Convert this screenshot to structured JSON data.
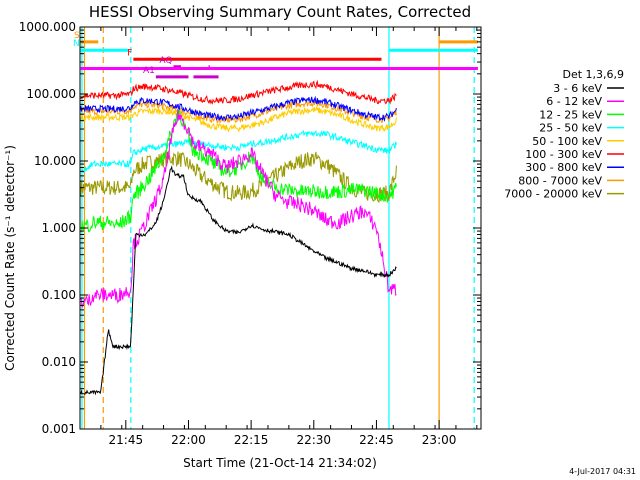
{
  "chart_data": {
    "type": "line",
    "title": "HESSI Observing Summary Count Rates, Corrected",
    "xlabel": "Start Time (21-Oct-14 21:34:02)",
    "ylabel": "Corrected Count Rate (s⁻¹ detector⁻¹)",
    "ylog": true,
    "ylim": [
      0.001,
      1000
    ],
    "xlim": [
      21.5672,
      23.1672
    ],
    "y_tick_labels": [
      "1000.000",
      "100.000",
      "10.000",
      "1.000",
      "0.100",
      "0.010",
      "0.001"
    ],
    "y_tick_values": [
      1000,
      100,
      10,
      1,
      0.1,
      0.01,
      0.001
    ],
    "x_tick_labels": [
      "21:45",
      "22:00",
      "22:15",
      "22:30",
      "22:45",
      "23:00"
    ],
    "x_tick_values": [
      21.75,
      22.0,
      22.25,
      22.5,
      22.75,
      23.0
    ],
    "legend_title": "Det 1,3,6,9",
    "legend_placement": "right",
    "series": [
      {
        "name": "3 - 6 keV",
        "color": "#000000",
        "x": [
          21.57,
          21.65,
          21.68,
          21.7,
          21.72,
          21.77,
          21.77,
          21.79,
          21.83,
          21.87,
          21.9,
          21.93,
          21.95,
          21.98,
          22.0,
          22.05,
          22.1,
          22.15,
          22.2,
          22.25,
          22.3,
          22.4,
          22.45,
          22.5,
          22.55,
          22.6,
          22.65,
          22.7,
          22.75,
          22.8,
          22.83
        ],
        "y": [
          0.0035,
          0.0035,
          0.03,
          0.017,
          0.017,
          0.017,
          0.02,
          0.8,
          0.8,
          1.2,
          2.5,
          8,
          6,
          6,
          3,
          2.5,
          1.3,
          0.9,
          0.85,
          1.1,
          0.95,
          0.8,
          0.6,
          0.45,
          0.35,
          0.3,
          0.25,
          0.23,
          0.2,
          0.2,
          0.25
        ]
      },
      {
        "name": "6 - 12 keV",
        "color": "#ff00ff",
        "x": [
          21.57,
          21.6,
          21.62,
          21.68,
          21.72,
          21.77,
          21.78,
          21.8,
          21.85,
          21.9,
          21.93,
          21.96,
          22.0,
          22.02,
          22.05,
          22.1,
          22.15,
          22.2,
          22.25,
          22.3,
          22.35,
          22.4,
          22.45,
          22.5,
          22.55,
          22.6,
          22.65,
          22.7,
          22.75,
          22.8,
          22.83
        ],
        "y": [
          0.08,
          0.08,
          0.1,
          0.1,
          0.1,
          0.12,
          0.6,
          0.7,
          1.8,
          5,
          20,
          50,
          30,
          18,
          16,
          12,
          8,
          10,
          13,
          6,
          3,
          2.4,
          2.2,
          1.8,
          1.3,
          1.2,
          1.5,
          1.8,
          1.0,
          0.12,
          0.12
        ]
      },
      {
        "name": "12 - 25 keV",
        "color": "#00ff00",
        "x": [
          21.57,
          21.6,
          21.62,
          21.68,
          21.72,
          21.77,
          21.78,
          21.8,
          21.85,
          21.9,
          21.93,
          21.96,
          22.0,
          22.02,
          22.05,
          22.1,
          22.15,
          22.2,
          22.25,
          22.3,
          22.35,
          22.4,
          22.45,
          22.5,
          22.55,
          22.6,
          22.65,
          22.7,
          22.75,
          22.8,
          22.83
        ],
        "y": [
          1.1,
          1.1,
          1.2,
          1.2,
          1.1,
          1.5,
          3,
          3.5,
          6,
          12,
          25,
          60,
          22,
          14,
          13,
          9,
          7,
          8,
          12,
          5,
          4,
          3.7,
          3.5,
          3.5,
          3.5,
          3.5,
          3.7,
          3.7,
          3.3,
          3.0,
          4.0
        ]
      },
      {
        "name": "25 - 50 keV",
        "color": "#00ffff",
        "x": [
          21.57,
          21.62,
          21.68,
          21.72,
          21.77,
          21.78,
          21.82,
          21.87,
          21.92,
          21.96,
          22.0,
          22.05,
          22.1,
          22.15,
          22.2,
          22.25,
          22.3,
          22.35,
          22.4,
          22.45,
          22.5,
          22.55,
          22.6,
          22.65,
          22.7,
          22.75,
          22.8,
          22.83
        ],
        "y": [
          7,
          9,
          9,
          9,
          9,
          13,
          15,
          16,
          17,
          18,
          19,
          18,
          17,
          16,
          16,
          18,
          19,
          21,
          23,
          25,
          26,
          25,
          22,
          19,
          17,
          15,
          14,
          18
        ]
      },
      {
        "name": "50 - 100 keV",
        "color": "#ffcc00",
        "x": [
          21.57,
          21.62,
          21.68,
          21.72,
          21.77,
          21.78,
          21.82,
          21.87,
          21.92,
          21.96,
          22.0,
          22.05,
          22.1,
          22.15,
          22.2,
          22.25,
          22.3,
          22.35,
          22.4,
          22.45,
          22.5,
          22.55,
          22.6,
          22.65,
          22.7,
          22.75,
          22.8,
          22.83
        ],
        "y": [
          45,
          45,
          45,
          45,
          45,
          50,
          55,
          56,
          55,
          50,
          45,
          38,
          33,
          31,
          31,
          34,
          38,
          45,
          52,
          56,
          58,
          54,
          48,
          41,
          35,
          31,
          32,
          40
        ]
      },
      {
        "name": "100 - 300 keV",
        "color": "#ff0000",
        "x": [
          21.57,
          21.62,
          21.68,
          21.72,
          21.77,
          21.78,
          21.82,
          21.87,
          21.92,
          21.96,
          22.0,
          22.05,
          22.1,
          22.15,
          22.2,
          22.25,
          22.3,
          22.35,
          22.4,
          22.45,
          22.5,
          22.55,
          22.6,
          22.65,
          22.7,
          22.75,
          22.8,
          22.83
        ],
        "y": [
          95,
          95,
          95,
          95,
          100,
          120,
          130,
          125,
          115,
          105,
          95,
          85,
          80,
          80,
          85,
          95,
          105,
          115,
          125,
          135,
          140,
          130,
          115,
          100,
          90,
          80,
          80,
          95
        ]
      },
      {
        "name": "300 - 800 keV",
        "color": "#0000ff",
        "x": [
          21.57,
          21.62,
          21.68,
          21.72,
          21.77,
          21.78,
          21.82,
          21.87,
          21.92,
          21.96,
          22.0,
          22.05,
          22.1,
          22.15,
          22.2,
          22.25,
          22.3,
          22.35,
          22.4,
          22.45,
          22.5,
          22.55,
          22.6,
          22.65,
          22.7,
          22.75,
          22.8,
          22.83
        ],
        "y": [
          60,
          60,
          60,
          60,
          62,
          75,
          80,
          78,
          72,
          65,
          58,
          50,
          46,
          45,
          46,
          52,
          58,
          66,
          74,
          80,
          82,
          76,
          66,
          57,
          50,
          45,
          46,
          58
        ]
      },
      {
        "name": "800 - 7000 keV",
        "color": "#ff9900",
        "x": [
          21.57,
          21.62,
          21.68,
          21.72,
          21.77,
          21.78,
          21.82,
          21.87,
          21.92,
          21.96,
          22.0,
          22.05,
          22.1,
          22.15,
          22.2,
          22.25,
          22.3,
          22.35,
          22.4,
          22.45,
          22.5,
          22.55,
          22.6,
          22.65,
          22.7,
          22.75,
          22.8,
          22.83
        ],
        "y": [
          55,
          55,
          55,
          55,
          57,
          66,
          70,
          68,
          63,
          58,
          52,
          46,
          42,
          41,
          42,
          47,
          53,
          60,
          67,
          72,
          74,
          69,
          60,
          52,
          46,
          42,
          43,
          54
        ]
      },
      {
        "name": "7000 - 20000 keV",
        "color": "#999900",
        "x": [
          21.57,
          21.62,
          21.68,
          21.72,
          21.77,
          21.78,
          21.82,
          21.87,
          21.92,
          21.96,
          22.0,
          22.05,
          22.1,
          22.15,
          22.2,
          22.25,
          22.3,
          22.35,
          22.4,
          22.45,
          22.5,
          22.55,
          22.6,
          22.65,
          22.7,
          22.75,
          22.8,
          22.83
        ],
        "y": [
          4,
          4,
          4,
          4,
          4,
          7,
          9,
          10,
          11,
          11,
          9,
          6,
          4.5,
          3.5,
          3.3,
          3.5,
          4.5,
          6,
          8,
          10,
          11,
          9,
          6,
          4,
          3.3,
          3.2,
          3.3,
          7
        ]
      }
    ],
    "flags": [
      {
        "label": "S",
        "color": "#ff9900",
        "y": 600,
        "segments": [
          [
            21.57,
            21.64
          ],
          [
            23.0,
            23.155
          ]
        ]
      },
      {
        "label": "N",
        "color": "#00ffff",
        "y": 450,
        "segments": [
          [
            21.57,
            21.76
          ],
          [
            22.8,
            23.155
          ]
        ]
      },
      {
        "label": "F",
        "color": "#ff0000",
        "y": 330,
        "segments": [
          [
            21.78,
            22.77
          ]
        ]
      },
      {
        "label": "AQ",
        "color": "#cc00cc",
        "y": 255,
        "segments": [
          [
            21.94,
            21.97
          ],
          [
            22.08,
            22.085
          ]
        ]
      },
      {
        "label": "",
        "color": "#ff00ff",
        "y": 240,
        "segments": [
          [
            21.57,
            23.155
          ]
        ]
      },
      {
        "label": "A1",
        "color": "#cc00cc",
        "y": 180,
        "segments": [
          [
            21.87,
            22.0
          ],
          [
            22.02,
            22.12
          ]
        ]
      }
    ],
    "vlines": [
      {
        "x": 21.575,
        "color": "#00ffff",
        "style": "solid"
      },
      {
        "x": 21.585,
        "color": "#ff9900",
        "style": "solid"
      },
      {
        "x": 21.66,
        "color": "#ff9900",
        "style": "dashed"
      },
      {
        "x": 21.77,
        "color": "#00ffff",
        "style": "dashed"
      },
      {
        "x": 22.8,
        "color": "#00ffff",
        "style": "solid"
      },
      {
        "x": 23.0,
        "color": "#ff9900",
        "style": "solid"
      },
      {
        "x": 23.14,
        "color": "#00ffff",
        "style": "dashed"
      }
    ]
  },
  "footer": {
    "date_stamp": "4-Jul-2017 04:31"
  }
}
